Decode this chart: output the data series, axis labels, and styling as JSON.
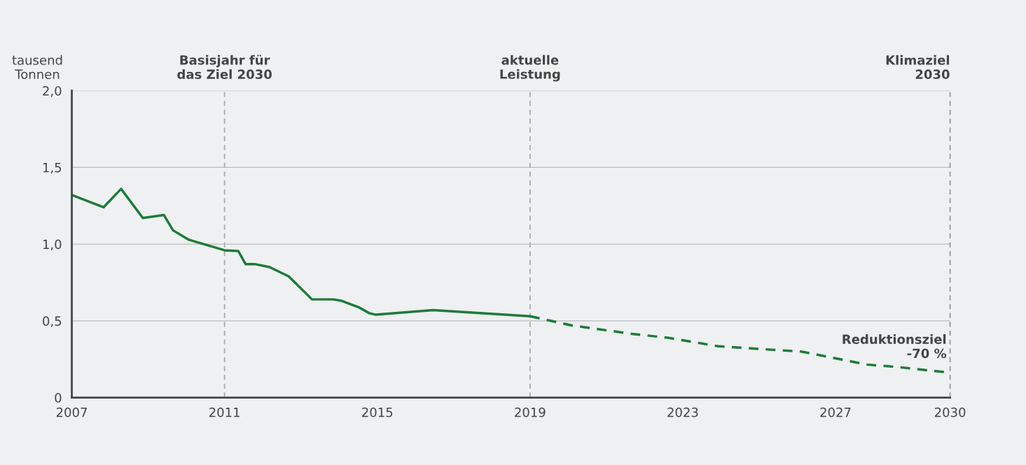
{
  "chart_data": {
    "type": "line",
    "ylabel": "tausend\nTonnen",
    "series": [
      {
        "color": "#1e7a3a",
        "line_style": "solid",
        "x": [
          2007,
          2007.83,
          2008.29,
          2008.86,
          2009.41,
          2009.65,
          2010.05,
          2011,
          2011.36,
          2011.55,
          2011.79,
          2012.18,
          2012.68,
          2013.29,
          2013.84,
          2014.07,
          2014.5,
          2014.79,
          2014.96,
          2016.46,
          2019
        ],
        "values": [
          1.32,
          1.24,
          1.36,
          1.17,
          1.19,
          1.09,
          1.03,
          0.96,
          0.955,
          0.87,
          0.87,
          0.85,
          0.79,
          0.64,
          0.64,
          0.63,
          0.59,
          0.55,
          0.54,
          0.57,
          0.53
        ]
      },
      {
        "color": "#1e7a3a",
        "line_style": "dashed",
        "x": [
          2019,
          2020.1,
          2021.67,
          2022.61,
          2023.91,
          2025.12,
          2026.1,
          2027.83,
          2028.58,
          2029.91
        ],
        "values": [
          0.53,
          0.47,
          0.415,
          0.39,
          0.335,
          0.315,
          0.3,
          0.215,
          0.2,
          0.165
        ]
      }
    ],
    "xlim": [
      2007,
      2030
    ],
    "xticks": [
      2007,
      2011,
      2015,
      2019,
      2023,
      2027,
      2030
    ],
    "ylim": [
      0,
      2.0
    ],
    "yticks": [
      0,
      {
        "value": 0.5,
        "label": "0,5"
      },
      {
        "value": 1.0,
        "label": "1,0"
      },
      {
        "value": 1.5,
        "label": "1,5"
      },
      {
        "value": 2.0,
        "label": "2,0"
      }
    ],
    "grid": "y",
    "ref_lines": [
      {
        "axis": "x",
        "value": 2011,
        "label": "Basisjahr für\ndas Ziel 2030",
        "color": "#aaaaaa",
        "line_style": "dashed"
      },
      {
        "axis": "x",
        "value": 2019,
        "label": "aktuelle\nLeistung",
        "color": "#aaaaaa",
        "line_style": "dashed"
      },
      {
        "axis": "x",
        "value": 2030,
        "label": "Klimaziel\n2030",
        "color": "#999999",
        "line_style": "dashed"
      }
    ],
    "annotations": [
      {
        "text": "Reduktionsziel\n-70 %",
        "x": 2029.91,
        "y": 0.165
      }
    ]
  }
}
